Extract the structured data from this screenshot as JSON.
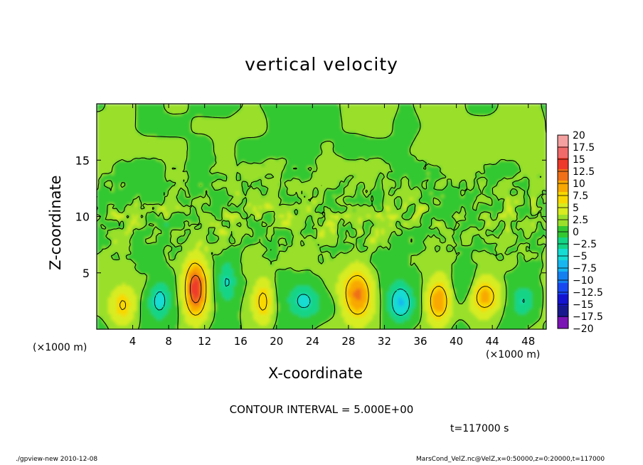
{
  "chart_data": {
    "type": "heatmap",
    "title": "vertical velocity",
    "xlabel": "X-coordinate",
    "ylabel": "Z-coordinate",
    "x_unit_label": "(×1000 m)",
    "x_ticks": [
      4,
      8,
      12,
      16,
      20,
      24,
      28,
      32,
      36,
      40,
      44,
      48
    ],
    "y_ticks": [
      5,
      10,
      15
    ],
    "xlim": [
      0,
      50
    ],
    "ylim": [
      0,
      20
    ],
    "contour_interval_text": "CONTOUR INTERVAL = 5.000E+00",
    "contour_interval": 5,
    "time_label": "t=117000 s",
    "colorbar": {
      "labels": [
        "20",
        "17.5",
        "15",
        "12.5",
        "10",
        "7.5",
        "5",
        "2.5",
        "0",
        "−2.5",
        "−5",
        "−7.5",
        "−10",
        "−12.5",
        "−15",
        "−17.5",
        "−20"
      ],
      "levels": [
        20,
        17.5,
        15,
        12.5,
        10,
        7.5,
        5,
        2.5,
        0,
        -2.5,
        -5,
        -7.5,
        -10,
        -12.5,
        -15,
        -17.5,
        -20
      ],
      "colors": [
        "#f4a0a0",
        "#f06a6a",
        "#ee3a2a",
        "#f07018",
        "#f8a800",
        "#f8d800",
        "#d8ec20",
        "#9ae02a",
        "#32c832",
        "#14d486",
        "#16dcd4",
        "#16b6f0",
        "#1480f0",
        "#1848f0",
        "#1414d0",
        "#18188e",
        "#7a14b4"
      ]
    },
    "features": [
      {
        "x": 11.0,
        "z": 3.6,
        "peak": 13,
        "sx": 1.2,
        "sz": 2.4
      },
      {
        "x": 29.0,
        "z": 3.0,
        "peak": 9.5,
        "sx": 1.6,
        "sz": 2.2
      },
      {
        "x": 38.0,
        "z": 2.5,
        "peak": 9,
        "sx": 1.2,
        "sz": 1.8
      },
      {
        "x": 43.2,
        "z": 3.0,
        "peak": 7.5,
        "sx": 1.6,
        "sz": 1.5
      },
      {
        "x": 18.5,
        "z": 2.5,
        "peak": 6,
        "sx": 1.0,
        "sz": 1.8
      },
      {
        "x": 2.9,
        "z": 2.2,
        "peak": 5,
        "sx": 1.3,
        "sz": 1.8
      },
      {
        "x": 33.8,
        "z": 2.4,
        "peak": -7.5,
        "sx": 1.4,
        "sz": 1.8
      },
      {
        "x": 7.0,
        "z": 2.6,
        "peak": -6,
        "sx": 1.2,
        "sz": 1.8
      },
      {
        "x": 23.0,
        "z": 2.5,
        "peak": -6,
        "sx": 1.8,
        "sz": 1.6
      },
      {
        "x": 14.5,
        "z": 4.2,
        "peak": -5,
        "sx": 1.0,
        "sz": 1.8
      },
      {
        "x": 47.5,
        "z": 2.5,
        "peak": -5,
        "sx": 1.2,
        "sz": 1.4
      },
      {
        "x": 40.8,
        "z": 4.0,
        "peak": -3,
        "sx": 1.2,
        "sz": 1.6
      }
    ]
  },
  "footer": {
    "left": "./gpview-new  2010-12-08",
    "right": "MarsCond_VelZ.nc@VelZ,x=0:50000,z=0:20000,t=117000"
  }
}
